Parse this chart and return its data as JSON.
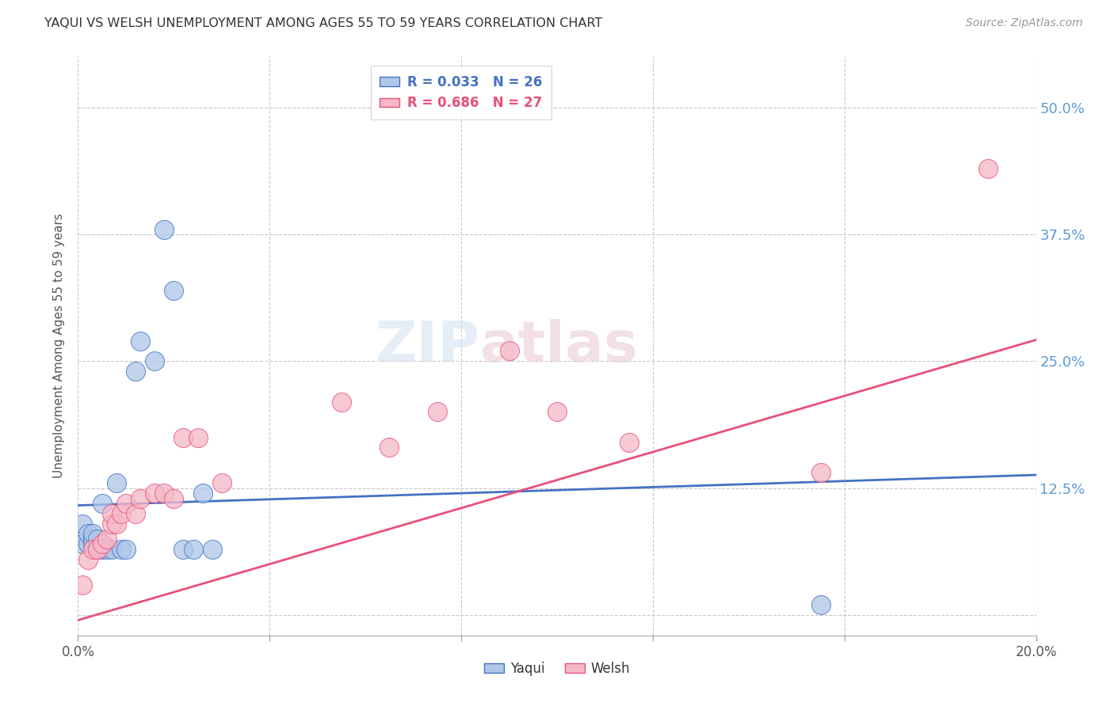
{
  "title": "YAQUI VS WELSH UNEMPLOYMENT AMONG AGES 55 TO 59 YEARS CORRELATION CHART",
  "source": "Source: ZipAtlas.com",
  "ylabel": "Unemployment Among Ages 55 to 59 years",
  "xlim": [
    0.0,
    0.2
  ],
  "ylim": [
    -0.02,
    0.55
  ],
  "xticks": [
    0.0,
    0.04,
    0.08,
    0.12,
    0.16,
    0.2
  ],
  "yticks": [
    0.0,
    0.125,
    0.25,
    0.375,
    0.5
  ],
  "ytick_labels": [
    "",
    "12.5%",
    "25.0%",
    "37.5%",
    "50.0%"
  ],
  "xtick_labels": [
    "0.0%",
    "",
    "",
    "",
    "",
    "20.0%"
  ],
  "background_color": "#ffffff",
  "grid_color": "#c8c8c8",
  "yaqui_color": "#aec6e8",
  "welsh_color": "#f5b8c8",
  "yaqui_line_color": "#4472c4",
  "welsh_line_color": "#e8507a",
  "yaqui_R": "0.033",
  "yaqui_N": "26",
  "welsh_R": "0.686",
  "welsh_N": "27",
  "yaqui_x": [
    0.001,
    0.001,
    0.002,
    0.002,
    0.003,
    0.003,
    0.003,
    0.004,
    0.004,
    0.005,
    0.005,
    0.006,
    0.007,
    0.008,
    0.009,
    0.01,
    0.012,
    0.013,
    0.016,
    0.018,
    0.02,
    0.022,
    0.024,
    0.026,
    0.028,
    0.155
  ],
  "yaqui_y": [
    0.07,
    0.09,
    0.07,
    0.08,
    0.07,
    0.075,
    0.08,
    0.075,
    0.065,
    0.11,
    0.065,
    0.065,
    0.065,
    0.13,
    0.065,
    0.065,
    0.24,
    0.27,
    0.25,
    0.38,
    0.32,
    0.065,
    0.065,
    0.12,
    0.065,
    0.01
  ],
  "welsh_x": [
    0.001,
    0.002,
    0.003,
    0.004,
    0.005,
    0.006,
    0.007,
    0.007,
    0.008,
    0.009,
    0.01,
    0.012,
    0.013,
    0.016,
    0.018,
    0.02,
    0.022,
    0.025,
    0.03,
    0.055,
    0.065,
    0.075,
    0.09,
    0.1,
    0.115,
    0.155,
    0.19
  ],
  "welsh_y": [
    0.03,
    0.055,
    0.065,
    0.065,
    0.07,
    0.075,
    0.09,
    0.1,
    0.09,
    0.1,
    0.11,
    0.1,
    0.115,
    0.12,
    0.12,
    0.115,
    0.175,
    0.175,
    0.13,
    0.21,
    0.165,
    0.2,
    0.26,
    0.2,
    0.17,
    0.14,
    0.44
  ]
}
